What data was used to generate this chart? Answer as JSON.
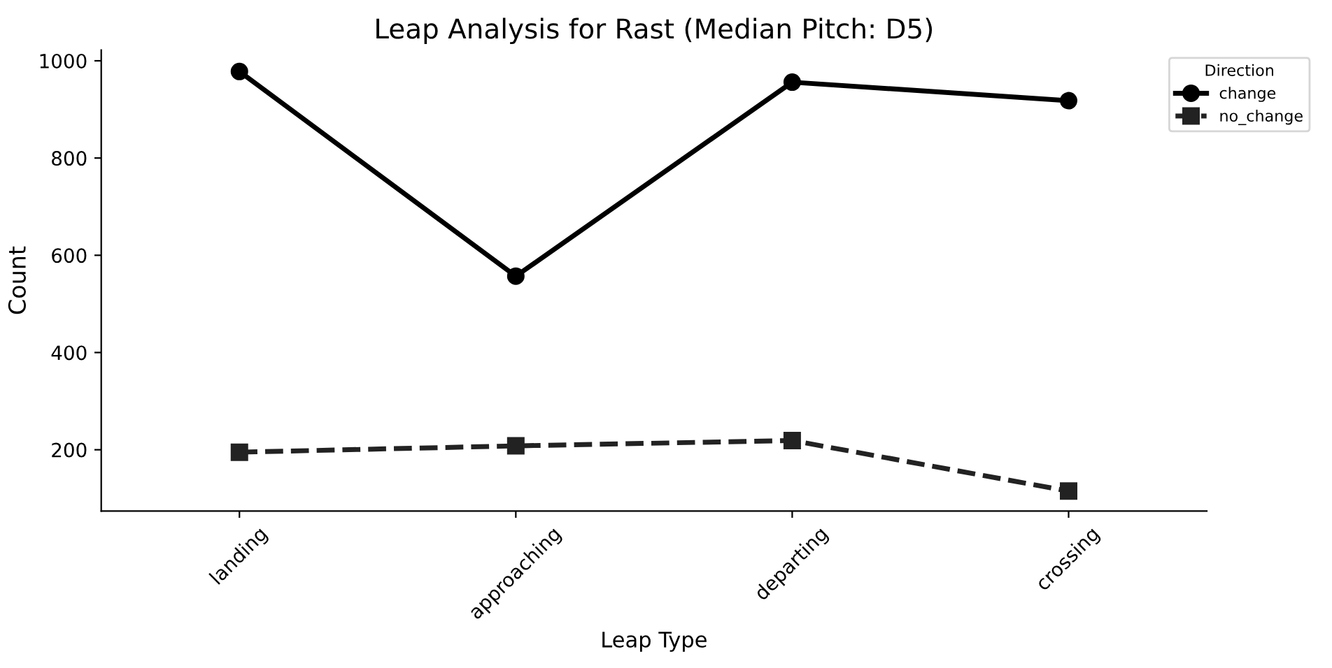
{
  "chart_data": {
    "type": "line",
    "title": "Leap Analysis for Rast (Median Pitch: D5)",
    "xlabel": "Leap Type",
    "ylabel": "Count",
    "legend_title": "Direction",
    "categories": [
      "landing",
      "approaching",
      "departing",
      "crossing"
    ],
    "series": [
      {
        "name": "change",
        "color": "#000000",
        "values": [
          978,
          557,
          956,
          918
        ],
        "marker": "circle",
        "line_style": "solid"
      },
      {
        "name": "no_change",
        "color": "#222222",
        "values": [
          195,
          208,
          219,
          115
        ],
        "marker": "square",
        "line_style": "dashed"
      }
    ],
    "ylim": [
      74,
      1022
    ],
    "yticks": [
      200,
      400,
      600,
      800,
      1000
    ],
    "grid": false,
    "legend": "top right"
  }
}
